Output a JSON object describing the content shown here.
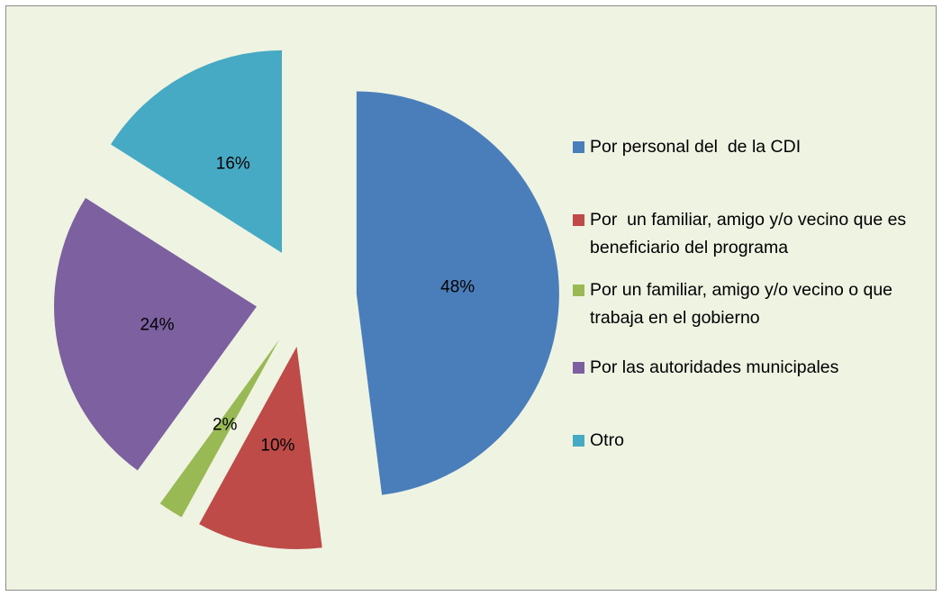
{
  "chart_data": {
    "type": "pie",
    "categories": [
      "Por personal del  de la CDI",
      "Por  un familiar, amigo y/o vecino que es beneficiario del programa",
      "Por un familiar, amigo y/o vecino o que trabaja en el gobierno",
      "Por las autoridades municipales",
      "Otro"
    ],
    "values": [
      48,
      10,
      2,
      24,
      16
    ],
    "value_labels": [
      "48%",
      "10%",
      "2%",
      "24%",
      "16%"
    ],
    "colors": [
      "#4a7ebb",
      "#be4b48",
      "#98b954",
      "#7d60a0",
      "#46aac5"
    ],
    "legend": "right"
  }
}
